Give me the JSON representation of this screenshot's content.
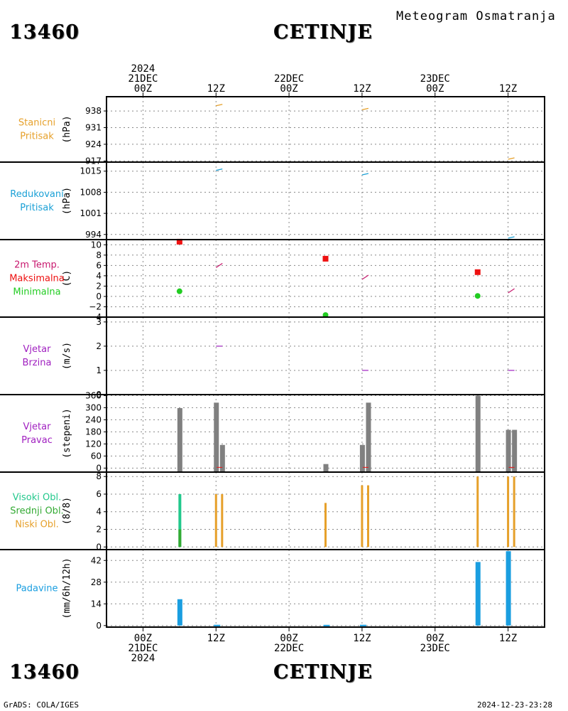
{
  "header": {
    "station_id": "13460",
    "station_name": "CETINJE",
    "title": "Meteogram Osmatranja",
    "credit": "GrADS: COLA/IGES",
    "timestamp": "2024-12-23-23:28"
  },
  "time_axis": {
    "top_labels": [
      {
        "lines": [
          "2024",
          "21DEC",
          "00Z"
        ]
      },
      {
        "lines": [
          "12Z"
        ]
      },
      {
        "lines": [
          "22DEC",
          "00Z"
        ]
      },
      {
        "lines": [
          "12Z"
        ]
      },
      {
        "lines": [
          "23DEC",
          "00Z"
        ]
      },
      {
        "lines": [
          "12Z"
        ]
      }
    ],
    "bottom_labels": [
      {
        "lines": [
          "00Z",
          "21DEC",
          "2024"
        ]
      },
      {
        "lines": [
          "12Z"
        ]
      },
      {
        "lines": [
          "00Z",
          "22DEC"
        ]
      },
      {
        "lines": [
          "12Z"
        ]
      },
      {
        "lines": [
          "00Z",
          "23DEC"
        ]
      },
      {
        "lines": [
          "12Z"
        ]
      }
    ]
  },
  "colors": {
    "station_pressure": "#e6a02a",
    "reduced_pressure": "#1aa0d6",
    "temp": "#c8186e",
    "tmax": "#ee1111",
    "tmin": "#22cc22",
    "wind": "#a020c0",
    "dir_bar": "#808080",
    "dir_red": "#ee1111",
    "cloud_high": "#22c88c",
    "cloud_mid": "#33aa33",
    "cloud_low": "#e6a02a",
    "precip": "#1a9ee0"
  },
  "chart_data": [
    {
      "type": "line",
      "panel": "station_pressure",
      "labels": [
        "Stanicni",
        "Pritisak"
      ],
      "ylabel": "(hPa)",
      "yticks": [
        917,
        924,
        931,
        938
      ],
      "ylim": [
        916.5,
        944
      ],
      "series": [
        {
          "x": [
            12,
            36,
            60
          ],
          "y": [
            940.5,
            938.8,
            918
          ]
        }
      ]
    },
    {
      "type": "line",
      "panel": "reduced_pressure",
      "labels": [
        "Redukovani",
        "Pritisak"
      ],
      "ylabel": "(hPa)",
      "yticks": [
        994,
        1001,
        1008,
        1015
      ],
      "ylim": [
        992.3,
        1018
      ],
      "series": [
        {
          "x": [
            12,
            36,
            60
          ],
          "y": [
            1015.5,
            1014,
            993
          ]
        }
      ]
    },
    {
      "type": "scatter",
      "panel": "temperature",
      "labels": [
        "2m Temp.",
        "Maksimalna",
        "Minimalna"
      ],
      "ylabel": "(C)",
      "yticks": [
        -4,
        -2,
        0,
        2,
        4,
        6,
        8,
        10
      ],
      "ylim": [
        -4,
        11
      ],
      "series": [
        {
          "name": "2m Temp.",
          "x": [
            12,
            36,
            60
          ],
          "y": [
            6,
            3.7,
            1.1
          ]
        },
        {
          "name": "Maksimalna",
          "x": [
            6,
            30,
            55
          ],
          "y": [
            10.6,
            7.3,
            4.7
          ]
        },
        {
          "name": "Minimalna",
          "x": [
            6,
            30,
            55
          ],
          "y": [
            1.0,
            -3.6,
            0.1
          ]
        }
      ]
    },
    {
      "type": "line",
      "panel": "wind_speed",
      "labels": [
        "Vjetar",
        "Brzina"
      ],
      "ylabel": "(m/s)",
      "yticks": [
        0,
        1,
        2,
        3
      ],
      "ylim": [
        0,
        3.2
      ],
      "series": [
        {
          "x": [
            12,
            36,
            60
          ],
          "y": [
            2,
            1,
            1
          ]
        }
      ]
    },
    {
      "type": "bar",
      "panel": "wind_direction",
      "labels": [
        "Vjetar",
        "Pravac"
      ],
      "ylabel": "(stepeni)",
      "yticks": [
        0,
        60,
        120,
        180,
        240,
        300,
        360
      ],
      "ylim": [
        -20,
        365
      ],
      "series": [
        {
          "x": [
            6,
            12,
            13,
            30,
            36,
            37,
            55,
            60,
            61
          ],
          "y": [
            298,
            325,
            115,
            20,
            115,
            325,
            360,
            190,
            190
          ]
        }
      ]
    },
    {
      "type": "bar",
      "panel": "clouds",
      "labels": [
        "Visoki Obl.",
        "Srednji Obl.",
        "Niski Obl."
      ],
      "ylabel": "(8/8)",
      "yticks": [
        0,
        2,
        4,
        6,
        8
      ],
      "ylim": [
        -0.3,
        8.5
      ],
      "series": [
        {
          "name": "Visoki Obl.",
          "x": [
            6
          ],
          "y": [
            6
          ]
        },
        {
          "name": "Srednji Obl.",
          "x": [
            6
          ],
          "y": [
            2
          ]
        },
        {
          "name": "Niski Obl.",
          "x": [
            12,
            13,
            30,
            36,
            37,
            55,
            60,
            61
          ],
          "y": [
            6,
            6,
            5,
            7,
            7,
            8,
            8,
            8
          ]
        }
      ]
    },
    {
      "type": "bar",
      "panel": "precipitation",
      "labels": [
        "Padavine"
      ],
      "ylabel": "(mm/6h/12h)",
      "yticks": [
        0,
        14,
        28,
        42
      ],
      "ylim": [
        -1,
        49
      ],
      "series": [
        {
          "x": [
            6,
            12,
            30,
            36,
            55,
            60
          ],
          "y": [
            17,
            0.5,
            0.3,
            0.5,
            41,
            48
          ]
        }
      ]
    }
  ]
}
